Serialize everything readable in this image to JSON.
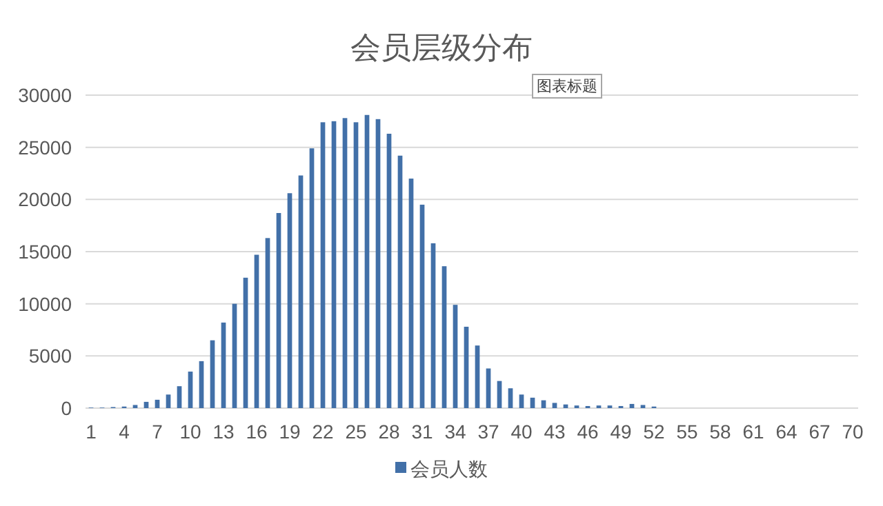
{
  "chart_data": {
    "type": "bar",
    "title": "会员层级分布",
    "categories": [
      "1",
      null,
      null,
      "4",
      null,
      null,
      "7",
      null,
      null,
      "10",
      null,
      null,
      "13",
      null,
      null,
      "16",
      null,
      null,
      "19",
      null,
      null,
      "22",
      null,
      null,
      "25",
      null,
      null,
      "28",
      null,
      null,
      "31",
      null,
      null,
      "34",
      null,
      null,
      "37",
      null,
      null,
      "40",
      null,
      null,
      "43",
      null,
      null,
      "46",
      null,
      null,
      "49",
      null,
      null,
      "52",
      null,
      null,
      "55",
      null,
      null,
      "58",
      null,
      null,
      "61",
      null,
      null,
      "64",
      null,
      null,
      "67",
      null,
      null,
      "70"
    ],
    "series": [
      {
        "name": "会员人数",
        "color": "#4270a8",
        "values": [
          50,
          50,
          100,
          150,
          300,
          600,
          800,
          1300,
          2100,
          3500,
          4500,
          6500,
          8200,
          10000,
          12500,
          14700,
          16300,
          18700,
          20600,
          22300,
          24900,
          27400,
          27500,
          27800,
          27400,
          28100,
          27700,
          26300,
          24200,
          22000,
          19500,
          15800,
          13600,
          9900,
          7800,
          6000,
          3800,
          2600,
          1900,
          1300,
          1000,
          750,
          500,
          350,
          250,
          200,
          250,
          250,
          200,
          400,
          300,
          150,
          0,
          0,
          0,
          0,
          0,
          0,
          0,
          0,
          0,
          0,
          0,
          0,
          0,
          0,
          0,
          0,
          0,
          0
        ]
      }
    ],
    "ylim": [
      0,
      30000
    ],
    "yticks": [
      0,
      5000,
      10000,
      15000,
      20000,
      25000,
      30000
    ],
    "grid": "y",
    "legend": "bottom",
    "annotations": [
      "图表标题"
    ]
  }
}
